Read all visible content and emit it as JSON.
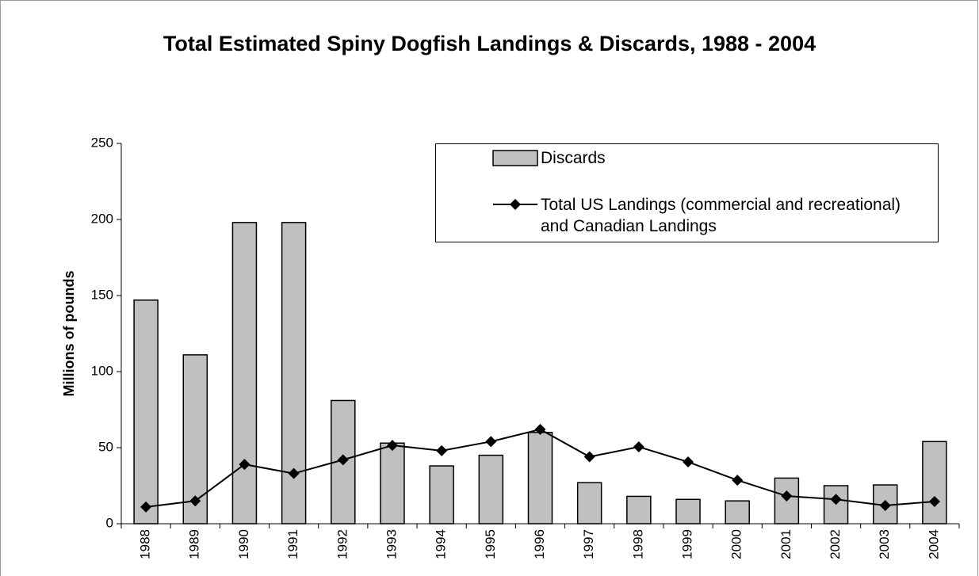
{
  "chart_data": {
    "type": "bar",
    "title": "Total Estimated Spiny Dogfish Landings & Discards, 1988 - 2004",
    "y_label": "Millions of pounds",
    "categories": [
      "1988",
      "1989",
      "1990",
      "1991",
      "1992",
      "1993",
      "1994",
      "1995",
      "1996",
      "1997",
      "1998",
      "1999",
      "2000",
      "2001",
      "2002",
      "2003",
      "2004"
    ],
    "series": [
      {
        "name": "Discards",
        "type": "bar",
        "color": "#c0c0c0",
        "values": [
          147,
          111,
          198,
          198,
          81,
          53,
          38,
          45,
          60,
          27,
          18,
          16,
          15,
          30,
          25,
          25.5,
          54
        ]
      },
      {
        "name": "Total US Landings (commercial and recreational) and Canadian Landings",
        "type": "line",
        "color": "#000000",
        "values": [
          11,
          15,
          39,
          33,
          42,
          51.5,
          48,
          54,
          62,
          44,
          50.5,
          40.6,
          28.6,
          18.2,
          16,
          12,
          14.6
        ]
      }
    ],
    "ylim": [
      0,
      250
    ],
    "yticks": [
      0,
      50,
      100,
      150,
      200,
      250
    ],
    "grid": false
  }
}
